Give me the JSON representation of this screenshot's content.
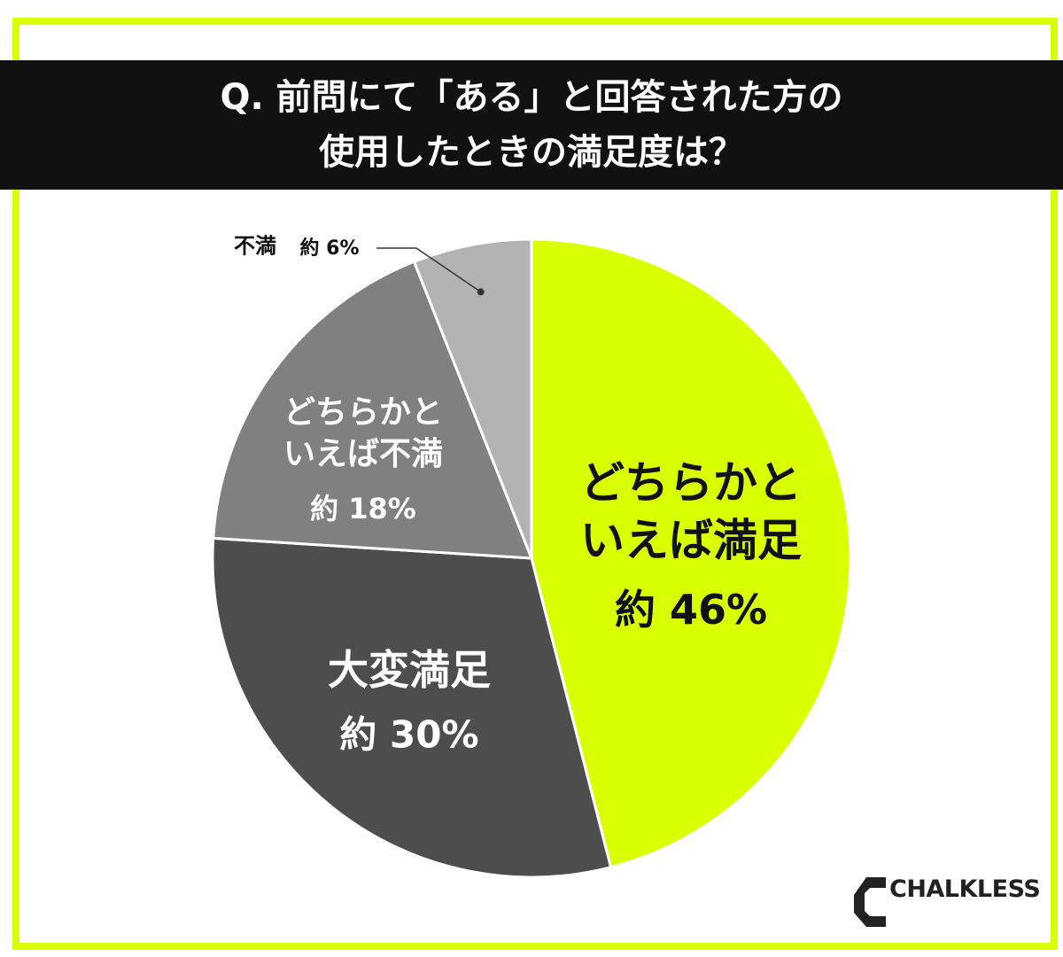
{
  "chart_data": {
    "type": "pie",
    "title": "Q. 前問にて「ある」と回答された方の\n使用したときの満足度は？",
    "categories": [
      "どちらかと\nいえば満足",
      "大変満足",
      "どちらかと\nいえば不満",
      "不満"
    ],
    "values": [
      46,
      30,
      18,
      6
    ],
    "value_labels": [
      "約 46%",
      "約 30%",
      "約 18%",
      "約 6%"
    ],
    "colors": [
      "#d9ff00",
      "#4d4d4d",
      "#808080",
      "#b3b3b3"
    ],
    "logo": "CHALKLESS"
  }
}
